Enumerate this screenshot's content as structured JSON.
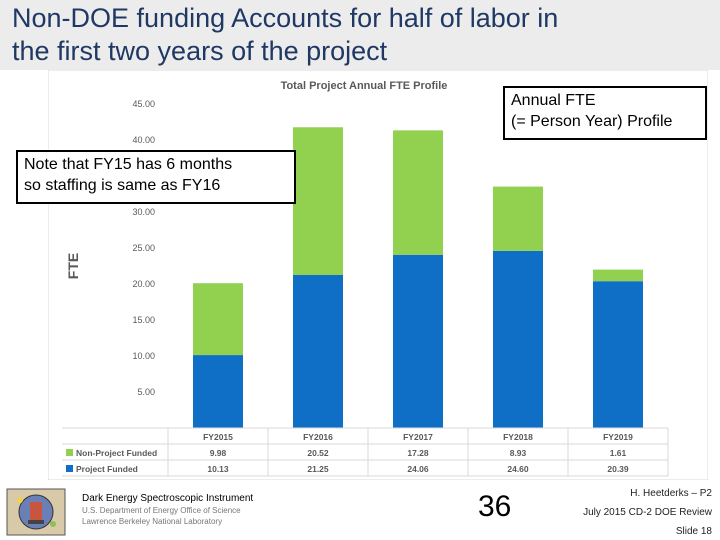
{
  "slide": {
    "title_line1": "Non-DOE funding Accounts for half of labor in",
    "title_line2": "the first two years of the project"
  },
  "callouts": {
    "fte_line1": "Annual FTE",
    "fte_line2": "(= Person Year) Profile",
    "note_line1": "Note that FY15 has 6 months",
    "note_line2": "so staffing is same as FY16"
  },
  "chart_data": {
    "type": "bar",
    "stacked": true,
    "title": "Total Project Annual FTE Profile",
    "ylabel": "FTE",
    "xlabel": "",
    "ylim": [
      0,
      45
    ],
    "yticks": [
      "5.00",
      "10.00",
      "15.00",
      "20.00",
      "25.00",
      "30.00",
      "35.00",
      "40.00",
      "45.00"
    ],
    "categories": [
      "FY2015",
      "FY2016",
      "FY2017",
      "FY2018",
      "FY2019"
    ],
    "series": [
      {
        "name": "Project Funded",
        "color": "#0f6fc6",
        "values": [
          10.13,
          21.25,
          24.06,
          24.6,
          20.39
        ],
        "labels": [
          "10.13",
          "21.25",
          "24.06",
          "24.60",
          "20.39"
        ]
      },
      {
        "name": "Non-Project Funded",
        "color": "#92d050",
        "values": [
          9.98,
          20.52,
          17.28,
          8.93,
          1.61
        ],
        "labels": [
          "9.98",
          "20.52",
          "17.28",
          "8.93",
          "1.61"
        ]
      }
    ],
    "data_table": true,
    "grid": false
  },
  "footer": {
    "org_name": "Dark Energy Spectroscopic Instrument",
    "org_line2": "U.S. Department of Energy Office of Science",
    "org_line3": "Lawrence Berkeley National Laboratory",
    "page_number": "36",
    "presenter": "H. Heetderks – P2",
    "review": "July 2015 CD-2 DOE Review",
    "slide_label": "Slide 18"
  }
}
